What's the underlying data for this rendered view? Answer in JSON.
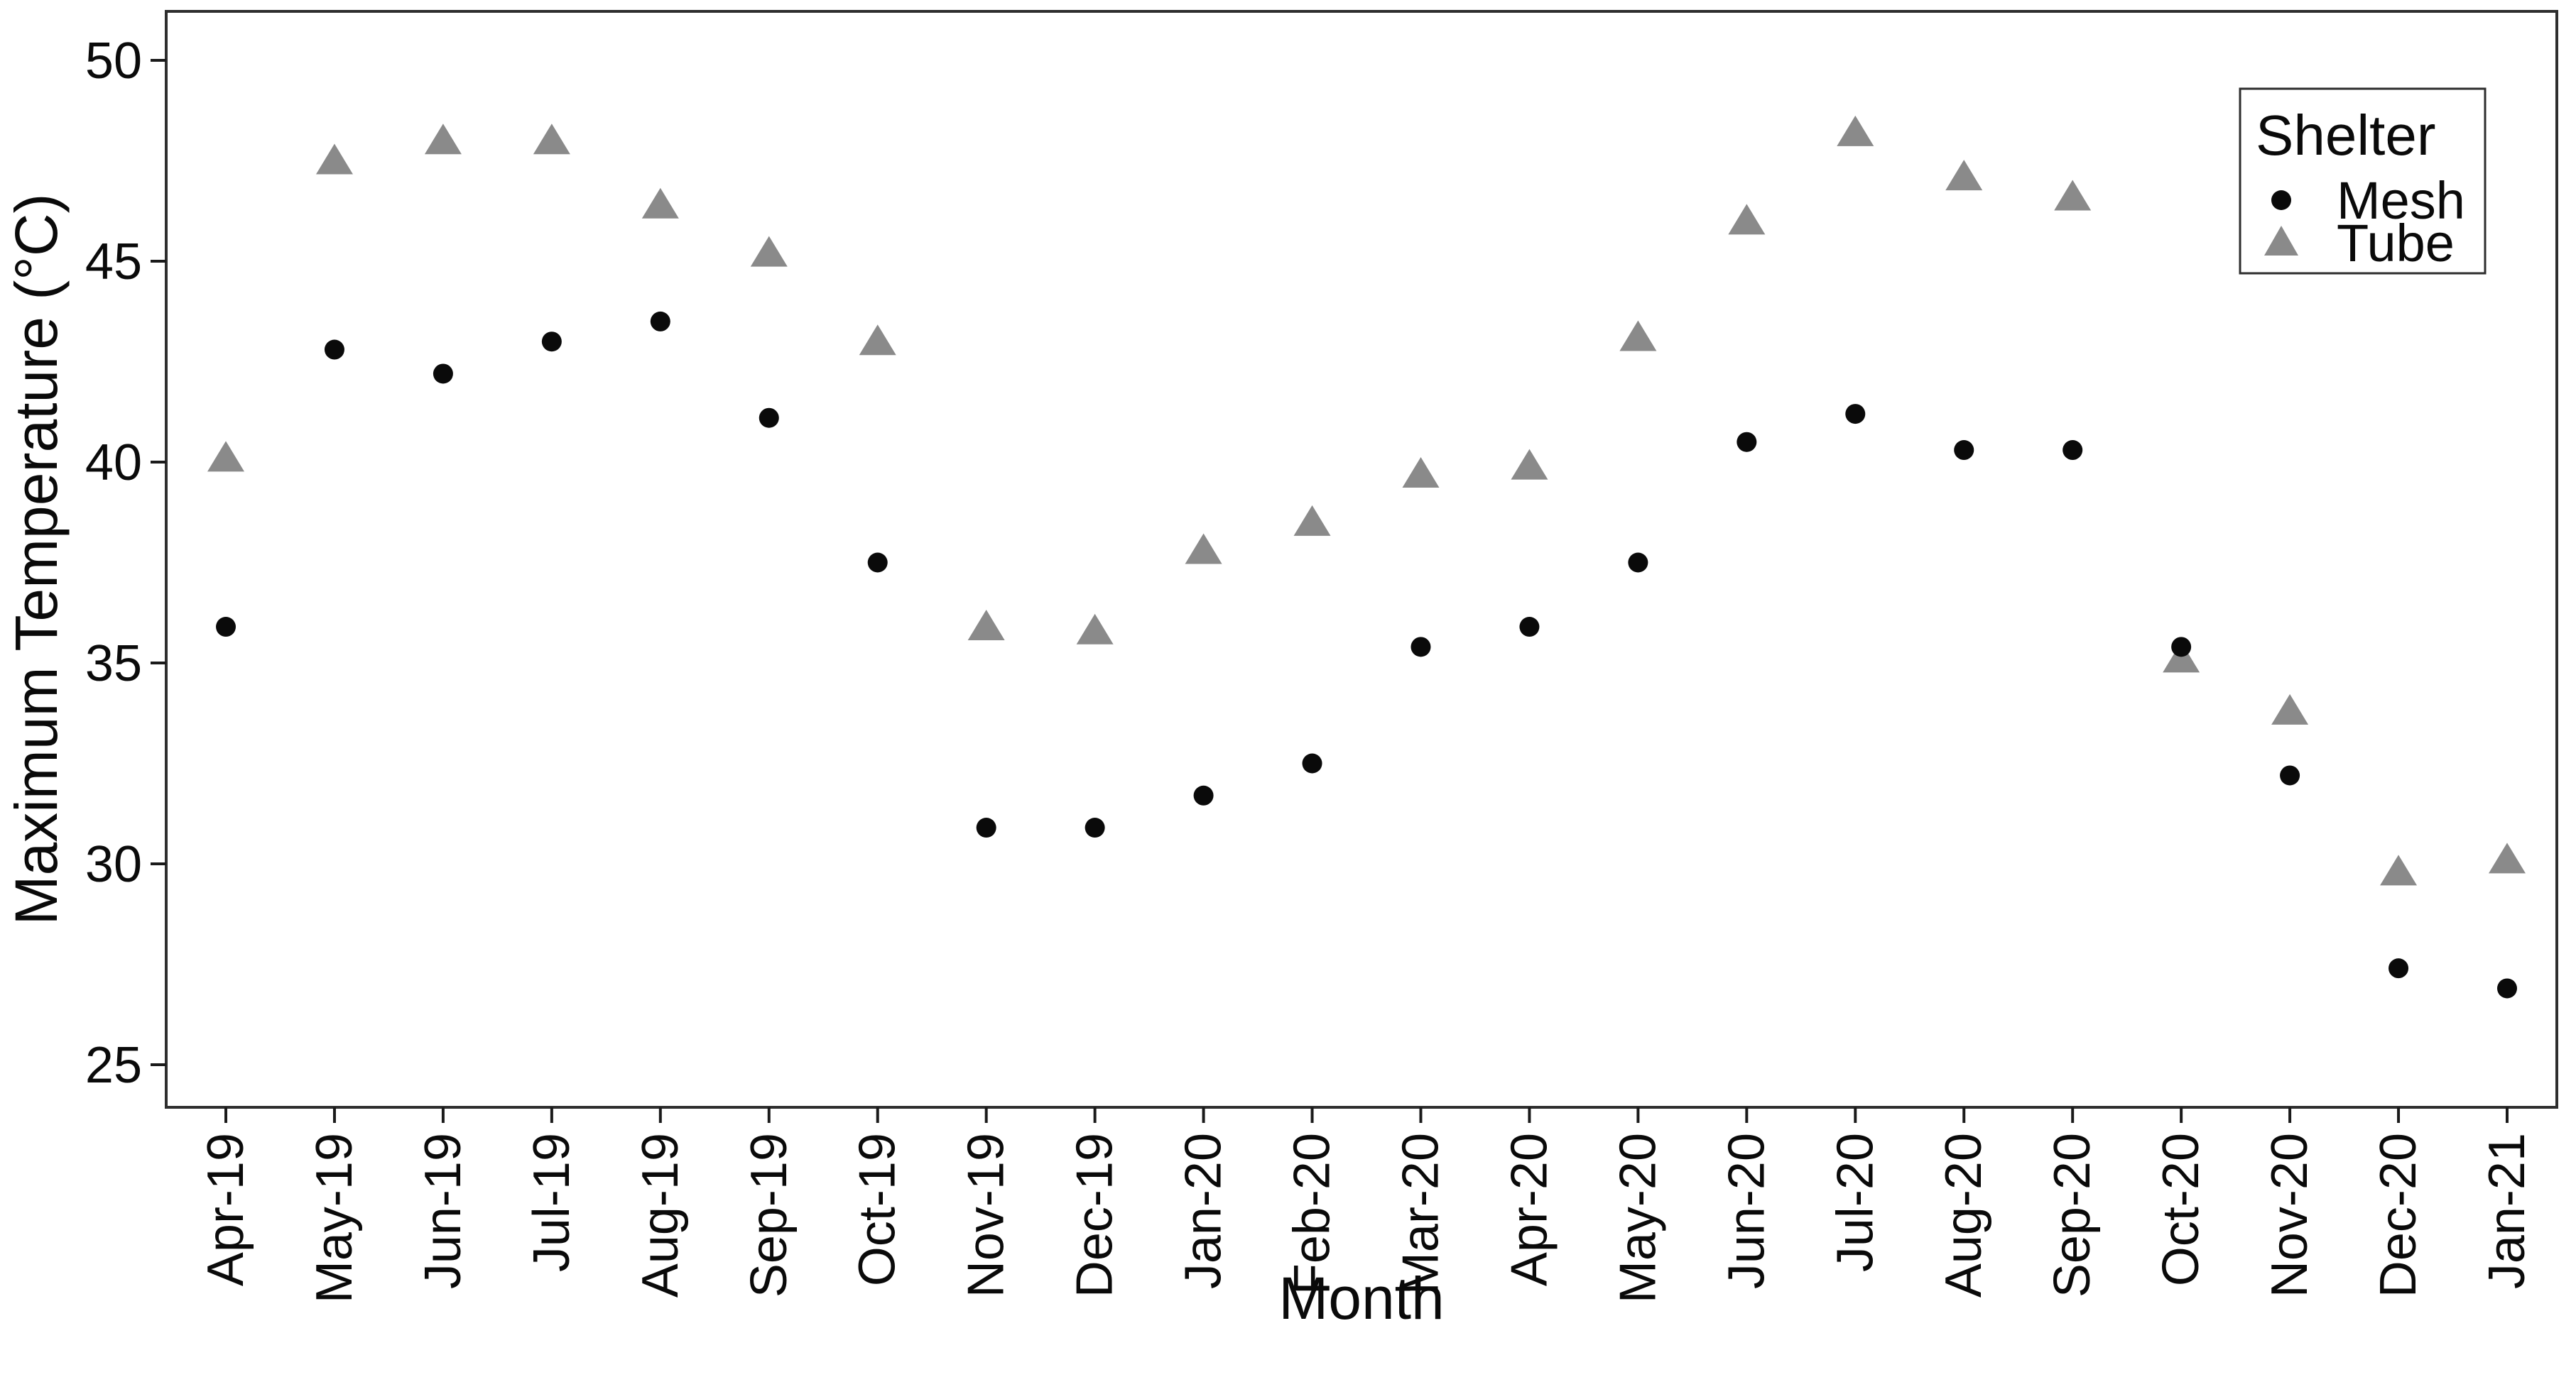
{
  "figure": {
    "background": "#ffffff",
    "border_color": "#2e2e2e",
    "text_color": "#0a0a0a"
  },
  "chart_data": {
    "type": "scatter",
    "title": "",
    "xlabel": "Month",
    "ylabel": "Maximum Temperature (°C)",
    "categories": [
      "Apr-19",
      "May-19",
      "Jun-19",
      "Jul-19",
      "Aug-19",
      "Sep-19",
      "Oct-19",
      "Nov-19",
      "Dec-19",
      "Jan-20",
      "Feb-20",
      "Mar-20",
      "Apr-20",
      "May-20",
      "Jun-20",
      "Jul-20",
      "Aug-20",
      "Sep-20",
      "Oct-20",
      "Nov-20",
      "Dec-20",
      "Jan-21"
    ],
    "yticks": [
      25,
      30,
      35,
      40,
      45,
      50
    ],
    "ylim": [
      23.8,
      51.2
    ],
    "grid": false,
    "legend": {
      "title": "Shelter",
      "position": "top-right",
      "entries": [
        {
          "label": "Mesh",
          "marker": "circle",
          "color": "#0a0a0a"
        },
        {
          "label": "Tube",
          "marker": "triangle",
          "color": "#8a8a8a"
        }
      ]
    },
    "series": [
      {
        "name": "Mesh",
        "marker": "circle",
        "color": "#0a0a0a",
        "values": [
          35.9,
          42.8,
          42.2,
          43.0,
          43.5,
          41.1,
          37.5,
          30.9,
          30.9,
          31.7,
          32.5,
          35.4,
          35.9,
          37.5,
          40.5,
          41.2,
          40.3,
          40.3,
          35.4,
          32.2,
          27.4,
          26.9
        ]
      },
      {
        "name": "Tube",
        "marker": "triangle",
        "color": "#8a8a8a",
        "values": [
          40.1,
          47.5,
          48.0,
          48.0,
          46.4,
          45.2,
          43.0,
          35.9,
          35.8,
          37.8,
          38.5,
          39.7,
          39.9,
          43.1,
          46.0,
          48.2,
          47.1,
          46.6,
          35.1,
          33.8,
          29.8,
          30.1
        ]
      }
    ]
  }
}
